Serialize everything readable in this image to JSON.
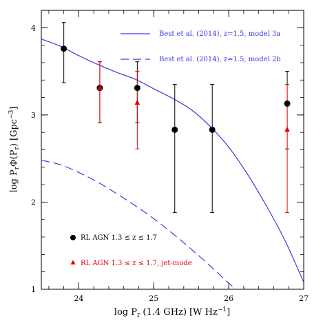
{
  "chart_data": {
    "type": "scatter",
    "xlabel_main": "log P",
    "xlabel_sub": "r",
    "xlabel_rest": " (1.4 GHz) [W Hz",
    "xlabel_sup": "−1",
    "xlabel_end": "]",
    "ylabel_main": "log P",
    "ylabel_sub1": "r",
    "ylabel_mid": "Φ(P",
    "ylabel_sub2": "r",
    "ylabel_rest": ") [Gpc",
    "ylabel_sup": "−3",
    "ylabel_end": "]",
    "xlim": [
      23.5,
      27
    ],
    "ylim": [
      1,
      4.2
    ],
    "xticks": [
      "24",
      "25",
      "26",
      "27"
    ],
    "yticks": [
      "1",
      "2",
      "3",
      "4"
    ],
    "colors": {
      "black": "#000000",
      "red": "#e00000",
      "blue": "#3a3ae0"
    },
    "lines": [
      {
        "name": "Best et al. (2014), z=1.5, model 3a",
        "style": "solid",
        "x": [
          23.5,
          23.75,
          24.0,
          24.25,
          24.5,
          24.75,
          25.0,
          25.25,
          25.5,
          25.75,
          26.0,
          26.25,
          26.5,
          26.75,
          27.0
        ],
        "y": [
          3.87,
          3.79,
          3.68,
          3.58,
          3.49,
          3.41,
          3.3,
          3.19,
          3.06,
          2.87,
          2.63,
          2.32,
          1.96,
          1.56,
          1.08
        ]
      },
      {
        "name": "Best et al. (2014), z=1.5, model 2b",
        "style": "dashed",
        "x": [
          23.5,
          23.75,
          24.0,
          24.25,
          24.5,
          24.75,
          25.0,
          25.25,
          25.5,
          25.75,
          26.0,
          26.1
        ],
        "y": [
          2.48,
          2.43,
          2.34,
          2.23,
          2.1,
          1.96,
          1.81,
          1.64,
          1.46,
          1.27,
          1.07,
          1.0
        ]
      }
    ],
    "series": [
      {
        "name": "RL AGN 1.3 ≤ z ≤ 1.7",
        "marker": "circle",
        "x": [
          23.8,
          24.28,
          24.78,
          25.28,
          25.78,
          26.78
        ],
        "y": [
          3.76,
          3.31,
          3.31,
          2.83,
          2.83,
          3.13
        ],
        "ylo": [
          3.37,
          2.91,
          2.91,
          1.88,
          1.88,
          2.61
        ],
        "yhi": [
          4.06,
          3.61,
          3.61,
          3.35,
          3.35,
          3.5
        ]
      },
      {
        "name": "RL AGN 1.3 ≤ z ≤ 1.7, jet-mode",
        "marker": "triangle",
        "x": [
          24.28,
          24.78,
          26.78
        ],
        "y": [
          3.31,
          3.14,
          2.83
        ],
        "ylo": [
          2.91,
          2.61,
          1.88
        ],
        "yhi": [
          3.61,
          3.5,
          3.35
        ]
      }
    ]
  }
}
